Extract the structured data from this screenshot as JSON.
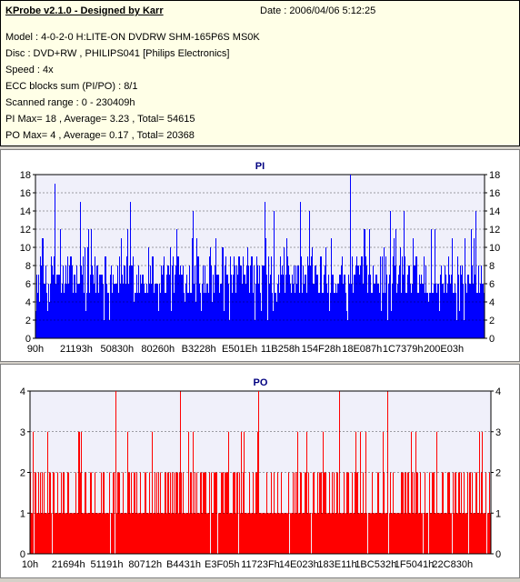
{
  "info": {
    "title": "KProbe v2.1.0 - Designed by Karr",
    "date": "Date : 2006/04/06 5:12:25",
    "lines": [
      "Model : 4-0-2-0 H:LITE-ON DVDRW SHM-165P6S MS0K",
      "Disc : DVD+RW , PHILIPS041 [Philips Electronics]",
      "Speed : 4x",
      "ECC blocks sum (PI/PO) : 8/1",
      "Scanned range : 0 - 230409h",
      "PI Max= 18 , Average= 3.23 , Total= 54615",
      "PO Max= 4 , Average= 0.17 , Total= 20368"
    ]
  },
  "colors": {
    "pi": "#0000ff",
    "po": "#ff0000",
    "info_bg": "#ffffe7",
    "plot_bg": "#f0f0fa",
    "title": "#000080"
  },
  "chart_data": [
    {
      "type": "bar",
      "title": "PI",
      "ylim": [
        0,
        18
      ],
      "yticks": [
        0,
        2,
        4,
        6,
        8,
        10,
        12,
        14,
        16,
        18
      ],
      "xlim_hex": [
        "0h",
        "230409h"
      ],
      "xtick_labels": [
        "90h",
        "21193h",
        "50830h",
        "80260h",
        "B3228h",
        "E501Eh",
        "11B258h",
        "154F28h",
        "18E087h",
        "1C7379h",
        "200E03h"
      ],
      "max": 18,
      "average": 3.23,
      "typical_range": [
        5,
        10
      ],
      "peaks": [
        {
          "pos": 0.043,
          "value": 17
        },
        {
          "pos": 0.7,
          "value": 18
        },
        {
          "pos": 0.1,
          "value": 15
        },
        {
          "pos": 0.21,
          "value": 15
        },
        {
          "pos": 0.35,
          "value": 14
        },
        {
          "pos": 0.51,
          "value": 15
        },
        {
          "pos": 0.53,
          "value": 14
        },
        {
          "pos": 0.59,
          "value": 15
        },
        {
          "pos": 0.61,
          "value": 14
        },
        {
          "pos": 0.79,
          "value": 14
        },
        {
          "pos": 0.82,
          "value": 14
        },
        {
          "pos": 0.98,
          "value": 14
        }
      ],
      "grid": true,
      "dual_y_axis": true
    },
    {
      "type": "bar",
      "title": "PO",
      "ylim": [
        0,
        4
      ],
      "yticks": [
        0,
        1,
        2,
        3,
        4
      ],
      "xlim_hex": [
        "0h",
        "230409h"
      ],
      "xtick_labels": [
        "10h",
        "21694h",
        "51191h",
        "80712h",
        "B4431h",
        "E3F05h",
        "11723Fh",
        "14E023h",
        "183E11h",
        "1BC532h",
        "1F5041h",
        "22C830h"
      ],
      "max": 4,
      "average": 0.17,
      "peaks": [
        {
          "pos": 0.185,
          "value": 4
        },
        {
          "pos": 0.325,
          "value": 4
        },
        {
          "pos": 0.495,
          "value": 4
        },
        {
          "pos": 0.67,
          "value": 4
        },
        {
          "pos": 0.775,
          "value": 4
        }
      ],
      "grid": true,
      "dual_y_axis": true
    }
  ]
}
